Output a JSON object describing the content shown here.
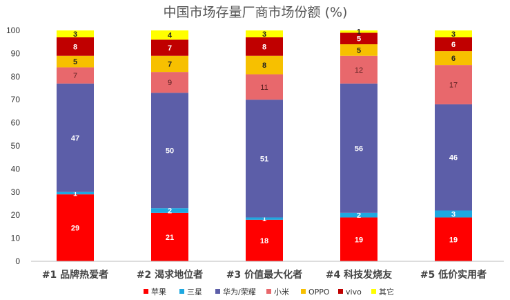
{
  "chart_data": {
    "type": "bar",
    "stacked": true,
    "title": "中国市场存量厂商市场份额 (%)",
    "categories": [
      "#1 品牌热爱者",
      "#2 渴求地位者",
      "#3 价值最大化者",
      "#4 科技发烧友",
      "#5 低价实用者"
    ],
    "series": [
      {
        "name": "苹果",
        "color": "#ff0000",
        "label_color": "#ffffff",
        "values": [
          29,
          21,
          18,
          19,
          19
        ]
      },
      {
        "name": "三星",
        "color": "#1ea8e0",
        "label_color": "#ffffff",
        "values": [
          1,
          2,
          1,
          2,
          3
        ]
      },
      {
        "name": "华为/荣耀",
        "color": "#5c5ea8",
        "label_color": "#ffffff",
        "values": [
          47,
          50,
          51,
          56,
          46
        ]
      },
      {
        "name": "小米",
        "color": "#e8686c",
        "label_color": "#5a2020",
        "values": [
          7,
          9,
          11,
          12,
          17
        ]
      },
      {
        "name": "OPPO",
        "color": "#f7c000",
        "label_color": "#222222",
        "values": [
          5,
          7,
          8,
          5,
          6
        ]
      },
      {
        "name": "vivo",
        "color": "#c00000",
        "label_color": "#ffffff",
        "values": [
          8,
          7,
          8,
          5,
          6
        ]
      },
      {
        "name": "其它",
        "color": "#ffff00",
        "label_color": "#222222",
        "values": [
          3,
          4,
          3,
          1,
          3
        ]
      }
    ],
    "ylim": [
      0,
      100
    ],
    "yticks": [
      0,
      10,
      20,
      30,
      40,
      50,
      60,
      70,
      80,
      90,
      100
    ],
    "grid": false,
    "legend_position": "bottom"
  }
}
